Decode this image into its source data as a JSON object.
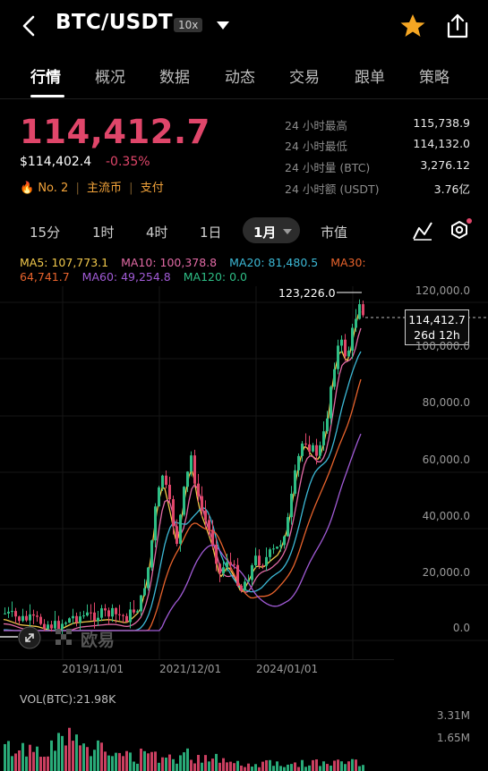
{
  "header": {
    "pair": "BTC/USDT",
    "leverage": "10x"
  },
  "tabs": [
    "行情",
    "概况",
    "数据",
    "动态",
    "交易",
    "跟单",
    "策略"
  ],
  "price": {
    "last": "114,412.7",
    "fiat": "$114,402.4",
    "change": "-0.35%",
    "rank": "No. 2",
    "tag1": "主流币",
    "tag2": "支付"
  },
  "stats": [
    {
      "label": "24 小时最高",
      "value": "115,738.9"
    },
    {
      "label": "24 小时最低",
      "value": "114,132.0"
    },
    {
      "label": "24 小时量 (BTC)",
      "value": "3,276.12"
    },
    {
      "label": "24 小时额 (USDT)",
      "value": "3.76亿"
    }
  ],
  "timeframes": [
    "15分",
    "1时",
    "4时",
    "1日",
    "1月",
    "市值"
  ],
  "ma_line1": [
    {
      "text": "MA5: 107,773.1",
      "color": "#f2c94c"
    },
    {
      "text": "MA10: 100,378.8",
      "color": "#e26aa5"
    },
    {
      "text": "MA20: 81,480.5",
      "color": "#3cb9d6"
    },
    {
      "text": "MA30:",
      "color": "#e8632c"
    }
  ],
  "ma_line2": [
    {
      "text": "64,741.7",
      "color": "#e8632c"
    },
    {
      "text": "MA60: 49,254.8",
      "color": "#a15bd6"
    },
    {
      "text": "MA120: 0.0",
      "color": "#2ebd85"
    }
  ],
  "chart": {
    "high_marker": "123,226.0",
    "current_price": "114,412.7",
    "countdown": "26d 12h",
    "y_ticks": [
      "120,000.0",
      "100,000.0",
      "80,000.0",
      "60,000.0",
      "40,000.0",
      "20,000.0",
      "0.0"
    ],
    "x_ticks": [
      "2019/11/01",
      "2021/12/01",
      "2024/01/01"
    ],
    "watermark": "欧易",
    "up_color": "#2ebd85",
    "down_color": "#e0466a"
  },
  "volume": {
    "label": "VOL(BTC):21.98K",
    "y_ticks": [
      "3.31M",
      "1.65M"
    ]
  }
}
